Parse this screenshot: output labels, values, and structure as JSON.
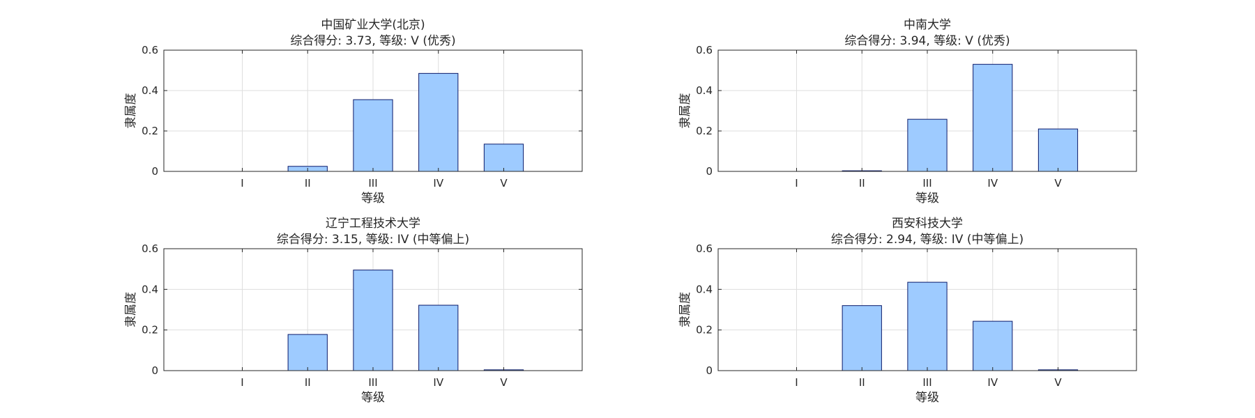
{
  "chart_data": [
    {
      "type": "bar",
      "title": "中国矿业大学(北京)",
      "subtitle": "综合得分: 3.73, 等级: V (优秀)",
      "xlabel": "等级",
      "ylabel": "隶属度",
      "categories": [
        "I",
        "II",
        "III",
        "IV",
        "V"
      ],
      "values": [
        0,
        0.025,
        0.355,
        0.485,
        0.135
      ],
      "ylim": [
        0,
        0.6
      ],
      "xlim": [
        -0.2,
        6.2
      ],
      "yticks": [
        "0",
        "0.2",
        "0.4",
        "0.6"
      ],
      "grid": true
    },
    {
      "type": "bar",
      "title": "中南大学",
      "subtitle": "综合得分: 3.94, 等级: V (优秀)",
      "xlabel": "等级",
      "ylabel": "隶属度",
      "categories": [
        "I",
        "II",
        "III",
        "IV",
        "V"
      ],
      "values": [
        0,
        0.003,
        0.258,
        0.53,
        0.21
      ],
      "ylim": [
        0,
        0.6
      ],
      "xlim": [
        -0.2,
        6.2
      ],
      "yticks": [
        "0",
        "0.2",
        "0.4",
        "0.6"
      ],
      "grid": true
    },
    {
      "type": "bar",
      "title": "辽宁工程技术大学",
      "subtitle": "综合得分: 3.15, 等级: IV (中等偏上)",
      "xlabel": "等级",
      "ylabel": "隶属度",
      "categories": [
        "I",
        "II",
        "III",
        "IV",
        "V"
      ],
      "values": [
        0,
        0.178,
        0.495,
        0.322,
        0.004
      ],
      "ylim": [
        0,
        0.6
      ],
      "xlim": [
        -0.2,
        6.2
      ],
      "yticks": [
        "0",
        "0.2",
        "0.4",
        "0.6"
      ],
      "grid": true
    },
    {
      "type": "bar",
      "title": "西安科技大学",
      "subtitle": "综合得分: 2.94, 等级: IV (中等偏上)",
      "xlabel": "等级",
      "ylabel": "隶属度",
      "categories": [
        "I",
        "II",
        "III",
        "IV",
        "V"
      ],
      "values": [
        0,
        0.32,
        0.435,
        0.243,
        0.004
      ],
      "ylim": [
        0,
        0.6
      ],
      "xlim": [
        -0.2,
        6.2
      ],
      "yticks": [
        "0",
        "0.2",
        "0.4",
        "0.6"
      ],
      "grid": true
    }
  ],
  "colors": {
    "bar_fill": "#9ecbff",
    "bar_edge": "#0a1a6a",
    "grid": "#dedede",
    "axis": "#262626"
  }
}
